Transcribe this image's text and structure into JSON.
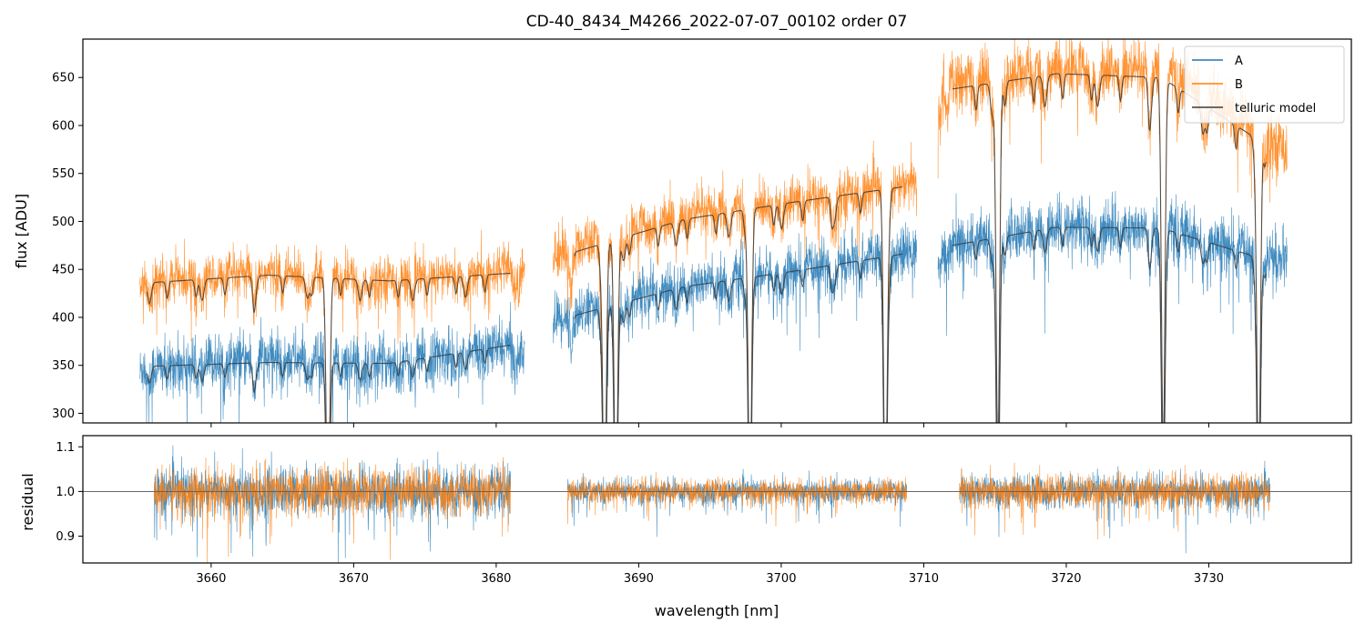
{
  "chart_data": {
    "type": "line",
    "title": "CD-40_8434_M4266_2022-07-07_00102  order 07",
    "xlabel": "wavelength [nm]",
    "xlim": [
      3651,
      3740
    ],
    "xticks": [
      3660,
      3670,
      3680,
      3690,
      3700,
      3710,
      3720,
      3730
    ],
    "colors": {
      "A": "#1f77b4",
      "B": "#ff7f0e",
      "model": "#3a3a3a"
    },
    "top_panel": {
      "ylabel": "flux [ADU]",
      "ylim": [
        290,
        690
      ],
      "yticks": [
        300,
        350,
        400,
        450,
        500,
        550,
        600,
        650
      ],
      "legend": {
        "location": "top-right",
        "entries": [
          "A",
          "B",
          "telluric model"
        ]
      },
      "segments": [
        {
          "x": [
            3655,
            3682
          ],
          "A_level": [
            347,
            358,
            353,
            372
          ],
          "A_noise": 26,
          "B_level": [
            438,
            446,
            440,
            452
          ],
          "B_noise": 22,
          "model_A": [
            349,
            353,
            352,
            371
          ],
          "model_B": [
            436,
            444,
            438,
            446
          ],
          "model_x": [
            3655.5,
            3681
          ]
        },
        {
          "x": [
            3684,
            3709.5
          ],
          "A_level": [
            398,
            432,
            450,
            468
          ],
          "A_noise": 24,
          "B_level": [
            465,
            505,
            522,
            540
          ],
          "B_noise": 24,
          "model_A": [
            402,
            432,
            448,
            466
          ],
          "model_B": [
            468,
            502,
            520,
            536
          ],
          "model_x": [
            3685.5,
            3708.5
          ]
        },
        {
          "x": [
            3711,
            3735.5
          ],
          "A_level": [
            475,
            495,
            492,
            458
          ],
          "A_noise": 26,
          "B_level": [
            640,
            660,
            655,
            575
          ],
          "B_noise": 28,
          "model_A": [
            475,
            494,
            493,
            460
          ],
          "model_B": [
            638,
            654,
            650,
            580
          ],
          "model_x": [
            3712,
            3734
          ]
        }
      ],
      "deep_absorption_lines": [
        3668.2,
        3687.6,
        3688.4,
        3697.8,
        3707.3,
        3715.2,
        3726.8,
        3733.5
      ]
    },
    "bottom_panel": {
      "ylabel": "residual",
      "ylim": [
        0.84,
        1.125
      ],
      "yticks": [
        0.9,
        1.0,
        1.1
      ],
      "ytick_labels": [
        "0.9",
        "1.0",
        "1.1"
      ],
      "reference_line": 1.0,
      "segments": [
        {
          "x": [
            3656,
            3681
          ],
          "scatter": 0.045
        },
        {
          "x": [
            3685,
            3708.8
          ],
          "scatter": 0.022
        },
        {
          "x": [
            3712.5,
            3734.3
          ],
          "scatter": 0.03
        }
      ]
    }
  }
}
